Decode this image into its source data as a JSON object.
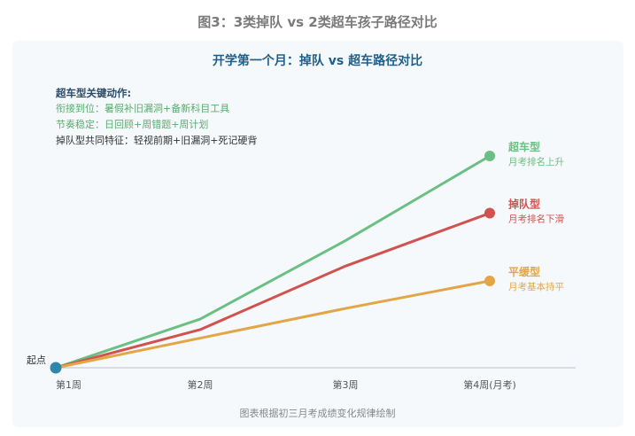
{
  "figure_title": "图3：3类掉队 vs 2类超车孩子路径对比",
  "footnote": "图表根据初三月考成绩变化规律绘制",
  "notes": {
    "title": "超车型关键动作:",
    "lines": [
      "衔接到位：暑假补旧漏洞+备新科目工具",
      "节奏稳定：日回顾+周错题+周计划"
    ],
    "common": "掉队型共同特征：轻视前期+旧漏洞+死记硬背"
  },
  "chart_data": {
    "type": "line",
    "title": "开学第一个月：掉队 vs 超车路径对比",
    "categories": [
      "第1周",
      "第2周",
      "第3周",
      "第4周(月考)"
    ],
    "start_label": "起点",
    "ylim": [
      0,
      100
    ],
    "grid": false,
    "series": [
      {
        "name": "超车型",
        "sub": "月考排名上升",
        "color": "#6abf83",
        "values": [
          0,
          23,
          60,
          100
        ]
      },
      {
        "name": "掉队型",
        "sub": "月考排名下滑",
        "color": "#d0534f",
        "values": [
          0,
          18,
          48,
          73
        ]
      },
      {
        "name": "平缓型",
        "sub": "月考基本持平",
        "color": "#e3a647",
        "values": [
          0,
          14,
          28,
          41
        ]
      }
    ],
    "start_color": "#2e86ab"
  }
}
